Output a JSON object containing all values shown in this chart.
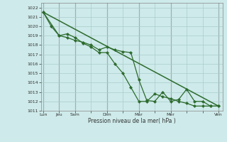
{
  "background_color": "#ceeaea",
  "grid_color": "#aacccc",
  "line_color": "#2d6b2d",
  "marker_color": "#2d6b2d",
  "xlabel_text": "Pression niveau de la mer( hPa )",
  "ylim": [
    1011,
    1022.5
  ],
  "yticks": [
    1011,
    1012,
    1013,
    1014,
    1015,
    1016,
    1017,
    1018,
    1019,
    1020,
    1021,
    1022
  ],
  "xtick_labels": [
    "Lun",
    "Jeu",
    "Sam",
    "",
    "Dim",
    "",
    "Mar",
    "",
    "Mer",
    "",
    "",
    "Ven"
  ],
  "xtick_positions": [
    0,
    2,
    4,
    6,
    8,
    10,
    12,
    14,
    16,
    18,
    20,
    22
  ],
  "major_xtick_positions": [
    0,
    2,
    4,
    8,
    12,
    16,
    22
  ],
  "xlim": [
    -0.3,
    22.5
  ],
  "series1_x": [
    0,
    1,
    2,
    3,
    4,
    5,
    6,
    7,
    8,
    9,
    10,
    11,
    12,
    13,
    14,
    15,
    16,
    17,
    18,
    19,
    20,
    21,
    22
  ],
  "series1_y": [
    1021.5,
    1020.0,
    1019.0,
    1018.8,
    1018.5,
    1018.3,
    1018.0,
    1017.5,
    1017.8,
    1017.5,
    1017.3,
    1017.2,
    1014.3,
    1012.1,
    1012.0,
    1013.0,
    1012.0,
    1012.2,
    1013.3,
    1012.0,
    1012.0,
    1011.5,
    1011.5
  ],
  "series2_x": [
    0,
    2,
    3,
    4,
    5,
    6,
    7,
    8,
    9,
    10,
    11,
    12,
    13,
    14,
    15,
    16,
    17,
    18,
    19,
    20,
    21,
    22
  ],
  "series2_y": [
    1021.5,
    1019.0,
    1019.2,
    1018.8,
    1018.2,
    1017.8,
    1017.2,
    1017.2,
    1016.0,
    1015.0,
    1013.5,
    1012.0,
    1012.0,
    1012.8,
    1012.5,
    1012.3,
    1012.0,
    1011.8,
    1011.5,
    1011.5,
    1011.5,
    1011.5
  ],
  "trend_x": [
    0,
    22
  ],
  "trend_y": [
    1021.5,
    1011.5
  ]
}
